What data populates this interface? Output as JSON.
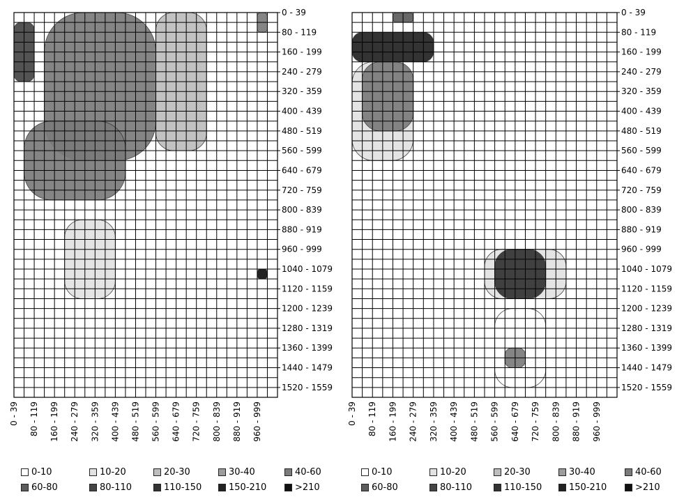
{
  "chart_data": [
    {
      "type": "heatmap",
      "title": "",
      "xlabel": "",
      "ylabel": "",
      "x_tick_labels": [
        "0 - 39",
        "80 - 119",
        "160 - 199",
        "240 - 279",
        "320 - 359",
        "400 - 439",
        "480 - 519",
        "560 - 599",
        "640 - 679",
        "720 - 759",
        "800 - 839",
        "880 - 919",
        "960 - 999"
      ],
      "y_tick_labels": [
        "0 - 39",
        "80 - 119",
        "160 - 199",
        "240 - 279",
        "320 - 359",
        "400 - 439",
        "480 - 519",
        "560 - 599",
        "640 - 679",
        "720 - 759",
        "800 - 839",
        "880 - 919",
        "960 - 999",
        "1040 - 1079",
        "1120 - 1159",
        "1200 - 1239",
        "1280 - 1319",
        "1360 - 1399",
        "1440 - 1479",
        "1520 - 1559"
      ],
      "grid": true,
      "legend_placement": "bottom",
      "legend": [
        "0-10",
        "10-20",
        "20-30",
        "30-40",
        "40-60",
        "60-80",
        "80-110",
        "110-150",
        "150-210",
        ">210"
      ],
      "colors": [
        "#ffffff",
        "#e2e2e2",
        "#bdbdbd",
        "#9c9c9c",
        "#7b7b7b",
        "#5c5c5c",
        "#454545",
        "#333333",
        "#222222",
        "#111111"
      ],
      "blobs": [
        {
          "x": "120 - 560",
          "y": "0 - 600",
          "level": "40-60"
        },
        {
          "x": "0 - 80",
          "y": "40 - 280",
          "level": "80-110"
        },
        {
          "x": "40 - 440",
          "y": "440 - 760",
          "level": "40-60"
        },
        {
          "x": "560 - 760",
          "y": "0 - 560",
          "level": "20-30"
        },
        {
          "x": "200 - 400",
          "y": "840 - 1160",
          "level": "10-20"
        },
        {
          "x": "960 - 999",
          "y": "1040 - 1079",
          "level": ">210"
        },
        {
          "x": "960 - 999",
          "y": "0 - 80",
          "level": "40-60"
        }
      ]
    },
    {
      "type": "heatmap",
      "title": "",
      "xlabel": "",
      "ylabel": "",
      "x_tick_labels": [
        "0 - 39",
        "80 - 119",
        "160 - 199",
        "240 - 279",
        "320 - 359",
        "400 - 439",
        "480 - 519",
        "560 - 599",
        "640 - 679",
        "720 - 759",
        "800 - 839",
        "880 - 919",
        "960 - 999"
      ],
      "y_tick_labels": [
        "0 - 39",
        "80 - 119",
        "160 - 199",
        "240 - 279",
        "320 - 359",
        "400 - 439",
        "480 - 519",
        "560 - 599",
        "640 - 679",
        "720 - 759",
        "800 - 839",
        "880 - 919",
        "960 - 999",
        "1040 - 1079",
        "1120 - 1159",
        "1200 - 1239",
        "1280 - 1319",
        "1360 - 1399",
        "1440 - 1479",
        "1520 - 1559"
      ],
      "grid": true,
      "legend_placement": "bottom",
      "legend": [
        "0-10",
        "10-20",
        "20-30",
        "30-40",
        "40-60",
        "60-80",
        "80-110",
        "110-150",
        "150-210",
        ">210"
      ],
      "colors": [
        "#ffffff",
        "#e2e2e2",
        "#bdbdbd",
        "#9c9c9c",
        "#7b7b7b",
        "#5c5c5c",
        "#454545",
        "#333333",
        "#222222",
        "#111111"
      ],
      "blobs": [
        {
          "x": "0 - 320",
          "y": "80 - 200",
          "level": "150-210"
        },
        {
          "x": "40 - 240",
          "y": "200 - 480",
          "level": "40-60"
        },
        {
          "x": "0 - 240",
          "y": "200 - 600",
          "level": "10-20"
        },
        {
          "x": "160 - 240",
          "y": "0 - 40",
          "level": "60-80"
        },
        {
          "x": "560 - 760",
          "y": "960 - 1160",
          "level": "110-150"
        },
        {
          "x": "520 - 840",
          "y": "960 - 1160",
          "level": "10-20"
        },
        {
          "x": "600 - 680",
          "y": "1360 - 1440",
          "level": "40-60"
        },
        {
          "x": "560 - 760",
          "y": "1200 - 1520",
          "level": "0-10"
        }
      ]
    }
  ]
}
